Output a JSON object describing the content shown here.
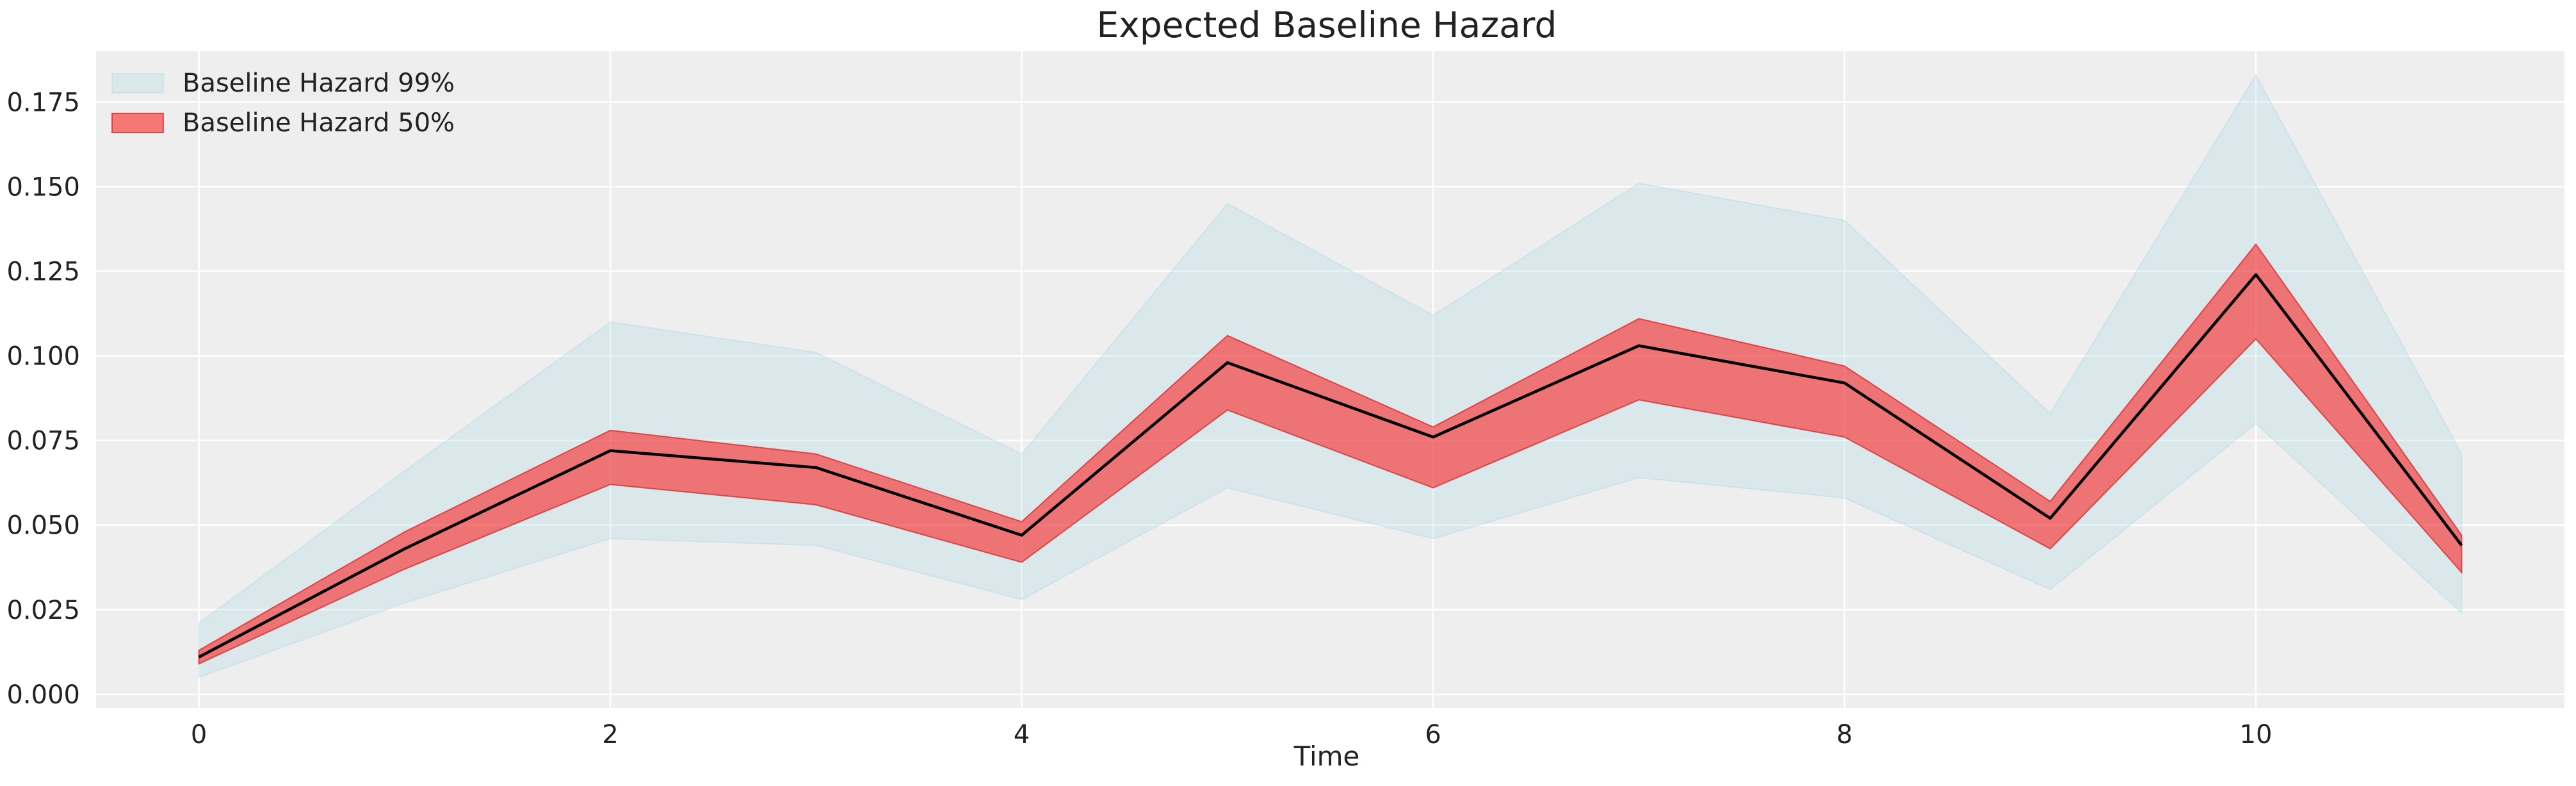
{
  "chart_data": {
    "type": "area",
    "title": "Expected Baseline Hazard",
    "xlabel": "Time",
    "ylabel": "",
    "xlim": [
      -0.5,
      11.5
    ],
    "ylim": [
      -0.004,
      0.19
    ],
    "xticks": [
      0,
      2,
      4,
      6,
      8,
      10
    ],
    "xtick_labels": [
      "0",
      "2",
      "4",
      "6",
      "8",
      "10"
    ],
    "yticks": [
      0.0,
      0.025,
      0.05,
      0.075,
      0.1,
      0.125,
      0.15,
      0.175
    ],
    "ytick_labels": [
      "0.000",
      "0.025",
      "0.050",
      "0.075",
      "0.100",
      "0.125",
      "0.150",
      "0.175"
    ],
    "grid": true,
    "legend_position": "top-left",
    "x": [
      0,
      1,
      2,
      3,
      4,
      5,
      6,
      7,
      8,
      9,
      10,
      11
    ],
    "bands": [
      {
        "name": "Baseline Hazard 99%",
        "color": "#add8e6",
        "lower": [
          0.005,
          0.027,
          0.046,
          0.044,
          0.028,
          0.061,
          0.046,
          0.064,
          0.058,
          0.031,
          0.08,
          0.024
        ],
        "upper": [
          0.021,
          0.066,
          0.11,
          0.101,
          0.071,
          0.145,
          0.112,
          0.151,
          0.14,
          0.083,
          0.183,
          0.071
        ]
      },
      {
        "name": "Baseline Hazard 50%",
        "color": "#ff0000",
        "lower": [
          0.009,
          0.037,
          0.062,
          0.056,
          0.039,
          0.084,
          0.061,
          0.087,
          0.076,
          0.043,
          0.105,
          0.036
        ],
        "upper": [
          0.013,
          0.048,
          0.078,
          0.071,
          0.051,
          0.106,
          0.079,
          0.111,
          0.097,
          0.057,
          0.133,
          0.047
        ]
      }
    ],
    "series": [
      {
        "values": [
          0.011,
          0.043,
          0.072,
          0.067,
          0.047,
          0.098,
          0.076,
          0.103,
          0.092,
          0.052,
          0.124,
          0.044
        ],
        "color": "#000000"
      }
    ]
  }
}
